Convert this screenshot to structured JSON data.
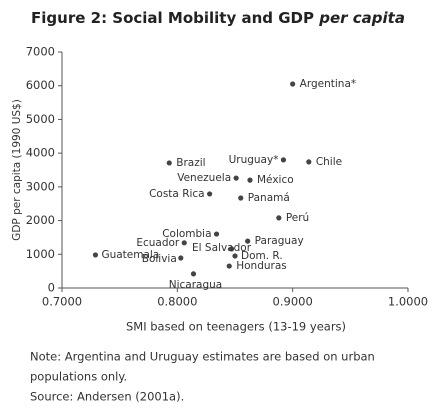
{
  "chart_data": {
    "type": "scatter",
    "title": "Figure 2: Social Mobility and GDP",
    "title_emphasis": "per capita",
    "x_label": "SMI based on teenagers (13-19 years)",
    "y_label": "GDP per capita (1990 US$)",
    "labels": [
      "Argentina*",
      "Uruguay*",
      "Chile",
      "Brazil",
      "Venezuela",
      "México",
      "Costa Rica",
      "Panamá",
      "Perú",
      "Colombia",
      "Paraguay",
      "Ecuador",
      "El Salvador",
      "Dom. R.",
      "Guatemala",
      "Bolivia",
      "Honduras",
      "Nicaragua"
    ],
    "x": [
      0.9,
      0.892,
      0.914,
      0.793,
      0.851,
      0.863,
      0.828,
      0.855,
      0.888,
      0.834,
      0.861,
      0.806,
      0.847,
      0.85,
      0.729,
      0.803,
      0.845,
      0.814
    ],
    "values": [
      6050,
      3800,
      3740,
      3710,
      3260,
      3200,
      2790,
      2670,
      2080,
      1600,
      1390,
      1340,
      1160,
      950,
      980,
      890,
      650,
      420
    ],
    "color": "#444444",
    "xlim": [
      0.7,
      1.0
    ],
    "xticks": [
      {
        "value": 0.7,
        "label": "0.7000"
      },
      {
        "value": 0.8,
        "label": "0.8000"
      },
      {
        "value": 0.9,
        "label": "0.9000"
      },
      {
        "value": 1.0,
        "label": "1.0000"
      }
    ],
    "ylim": [
      0,
      7000
    ],
    "yticks": [
      0,
      1000,
      2000,
      3000,
      4000,
      5000,
      6000,
      7000
    ],
    "notes": [
      "Note: Argentina and Uruguay estimates are based on urban",
      "populations only.",
      "Source: Andersen (2001a)."
    ]
  }
}
